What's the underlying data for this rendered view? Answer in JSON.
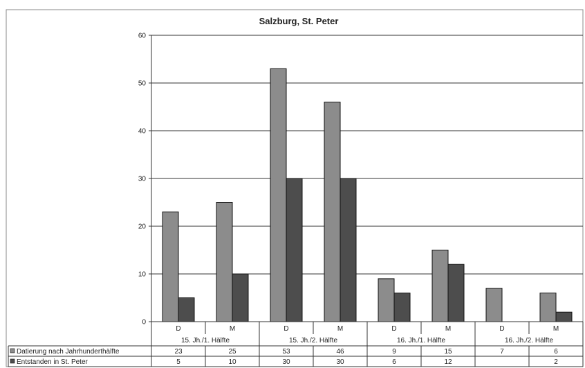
{
  "chart_data": {
    "type": "bar",
    "title": "Salzburg, St. Peter",
    "xlabel": "",
    "ylabel": "",
    "ylim": [
      0,
      60
    ],
    "yticks": [
      0,
      10,
      20,
      30,
      40,
      50,
      60
    ],
    "grid": true,
    "legend": "data-table-left",
    "groups": [
      {
        "label": "15. Jh./1. Hälfte",
        "categories": [
          "D",
          "M"
        ]
      },
      {
        "label": "15. Jh./2. Hälfte",
        "categories": [
          "D",
          "M"
        ]
      },
      {
        "label": "16. Jh./1. Hälfte",
        "categories": [
          "D",
          "M"
        ]
      },
      {
        "label": "16. Jh./2. Hälfte",
        "categories": [
          "D",
          "M"
        ]
      }
    ],
    "series": [
      {
        "name": "Datierung nach Jahrhunderthälfte",
        "color": "#8c8c8c",
        "values": [
          23,
          25,
          53,
          46,
          9,
          15,
          7,
          6
        ]
      },
      {
        "name": "Entstanden in St. Peter",
        "color": "#4d4d4d",
        "values": [
          5,
          10,
          30,
          30,
          6,
          12,
          null,
          2
        ]
      }
    ]
  }
}
